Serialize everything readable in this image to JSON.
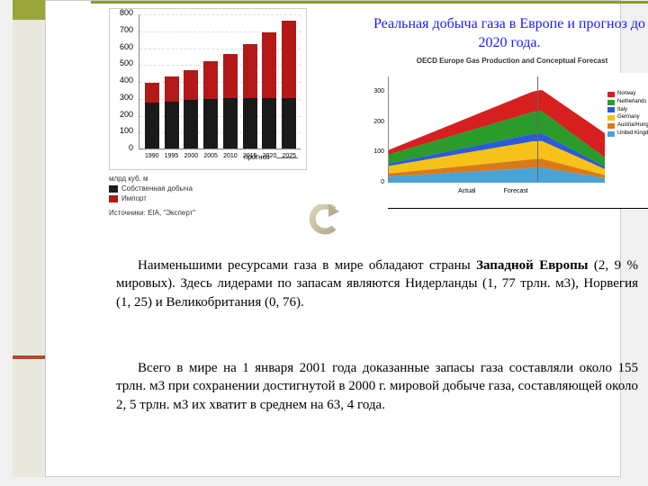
{
  "title": "Реальная добыча газа в Европе и прогноз до 2020 года.",
  "chart_left": {
    "type": "bar",
    "ylim": [
      0,
      800
    ],
    "ytick_step": 100,
    "ylabel": "млрд куб. м",
    "categories": [
      "1990",
      "1995",
      "2000",
      "2005",
      "2010",
      "2015",
      "2020",
      "2025"
    ],
    "series": [
      {
        "name": "Собственная добыча",
        "color": "#1a1a1a"
      },
      {
        "name": "Импорт",
        "color": "#b31919"
      }
    ],
    "values_black": [
      270,
      280,
      290,
      295,
      300,
      300,
      300,
      300
    ],
    "values_red": [
      120,
      145,
      175,
      220,
      260,
      320,
      390,
      460
    ],
    "forecast_label": "прогноз",
    "source": "Источники: EIA, \"Эксперт\"",
    "background_color": "#ffffff",
    "grid_color": "#dddddd"
  },
  "chart_right": {
    "type": "area",
    "title": "OECD Europe Gas Production and Conceptual Forecast",
    "ylim": [
      0,
      350
    ],
    "yticks": [
      0,
      100,
      200,
      300
    ],
    "actual_label": "Actual",
    "forecast_label": "Forecast",
    "legend": [
      {
        "name": "Norway",
        "color": "#d61f1f"
      },
      {
        "name": "Netherlands",
        "color": "#2b9b2b"
      },
      {
        "name": "Italy",
        "color": "#2b5bd6"
      },
      {
        "name": "Germany",
        "color": "#f6c21a"
      },
      {
        "name": "Austria/Hungary",
        "color": "#d97a1a"
      },
      {
        "name": "United Kingdom",
        "color": "#4aa3d6"
      }
    ],
    "background_color": "#ffffff"
  },
  "para1_pre": "Наименьшими ресурсами газа в мире обладают страны ",
  "para1_bold": "Западной Европы",
  "para1_post": " (2, 9 % мировых). Здесь лидерами по запасам являются Нидерланды (1, 77 трлн. м3), Норвегия (1, 25) и Великобритания (0, 76).",
  "para2": "Всего в мире на 1 января 2001 года доказанные запасы газа составляли около 155 трлн. м3 при сохранении достигнутой в 2000 г. мировой добыче газа, составляющей около 2, 5 трлн. м3 их хватит в среднем на 63, 4 года."
}
